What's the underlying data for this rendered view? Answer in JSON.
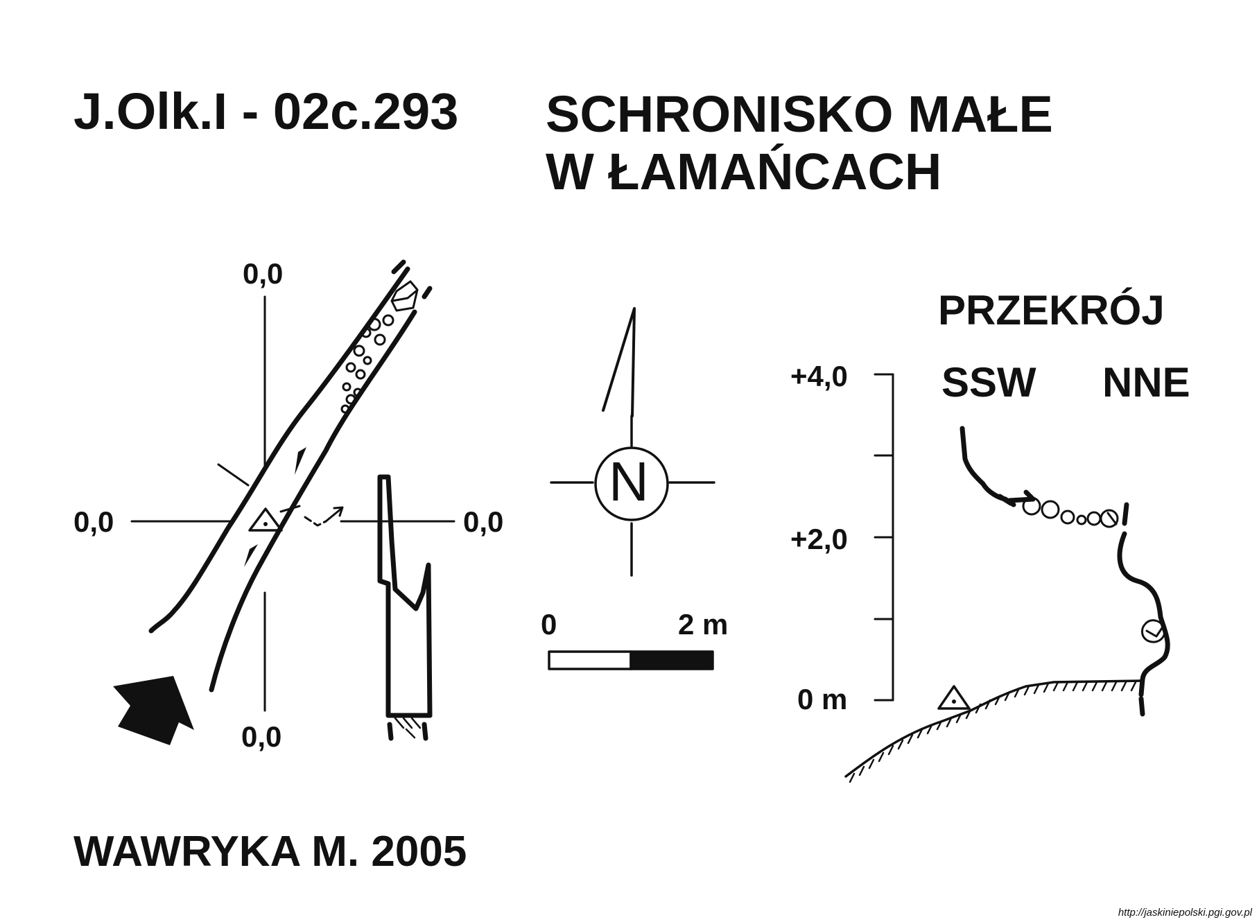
{
  "title": {
    "code": "J.Olk.I - 02c.293",
    "name_line1": "SCHRONISKO MAŁE",
    "name_line2": "W ŁAMAŃCACH"
  },
  "plan": {
    "coord_top": "0,0",
    "coord_left": "0,0",
    "coord_right": "0,0",
    "coord_bottom": "0,0"
  },
  "compass": {
    "label": "N"
  },
  "scale": {
    "start": "0",
    "end": "2 m"
  },
  "section": {
    "title": "PRZEKRÓJ",
    "dir_left": "SSW",
    "dir_right": "NNE",
    "levels": [
      "+4,0",
      "+2,0",
      "0 m"
    ]
  },
  "author": "WAWRYKA M. 2005",
  "credit": "http://jaskiniepolski.pgi.gov.pl",
  "colors": {
    "ink": "#111111",
    "paper": "#ffffff"
  }
}
